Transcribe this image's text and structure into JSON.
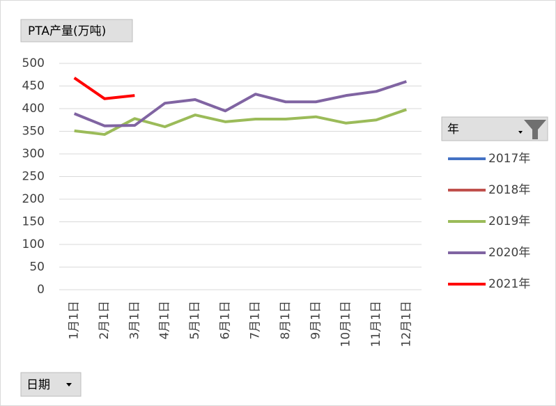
{
  "chart_data": {
    "type": "line",
    "title": "PTA产量(万吨)",
    "x_field": "日期",
    "legend_title": "年",
    "categories": [
      "1月1日",
      "2月1日",
      "3月1日",
      "4月1日",
      "5月1日",
      "6月1日",
      "7月1日",
      "8月1日",
      "9月1日",
      "10月1日",
      "11月1日",
      "12月1日"
    ],
    "series": [
      {
        "name": "2017年",
        "color": "#4472c4",
        "values": [
          null,
          null,
          null,
          null,
          null,
          null,
          null,
          null,
          null,
          null,
          null,
          null
        ]
      },
      {
        "name": "2018年",
        "color": "#c0504d",
        "values": [
          null,
          null,
          null,
          null,
          null,
          null,
          null,
          null,
          null,
          null,
          null,
          null
        ]
      },
      {
        "name": "2019年",
        "color": "#9bbb59",
        "values": [
          351,
          343,
          378,
          360,
          386,
          371,
          377,
          377,
          382,
          368,
          375,
          398
        ]
      },
      {
        "name": "2020年",
        "color": "#8064a2",
        "values": [
          389,
          362,
          363,
          412,
          420,
          395,
          432,
          415,
          415,
          429,
          438,
          460
        ]
      },
      {
        "name": "2021年",
        "color": "#ff0000",
        "values": [
          468,
          422,
          429,
          null,
          null,
          null,
          null,
          null,
          null,
          null,
          null,
          null
        ]
      }
    ],
    "ylim": [
      0,
      500
    ],
    "yticks": [
      0,
      50,
      100,
      150,
      200,
      250,
      300,
      350,
      400,
      450,
      500
    ],
    "grid": true,
    "legend": "right"
  }
}
